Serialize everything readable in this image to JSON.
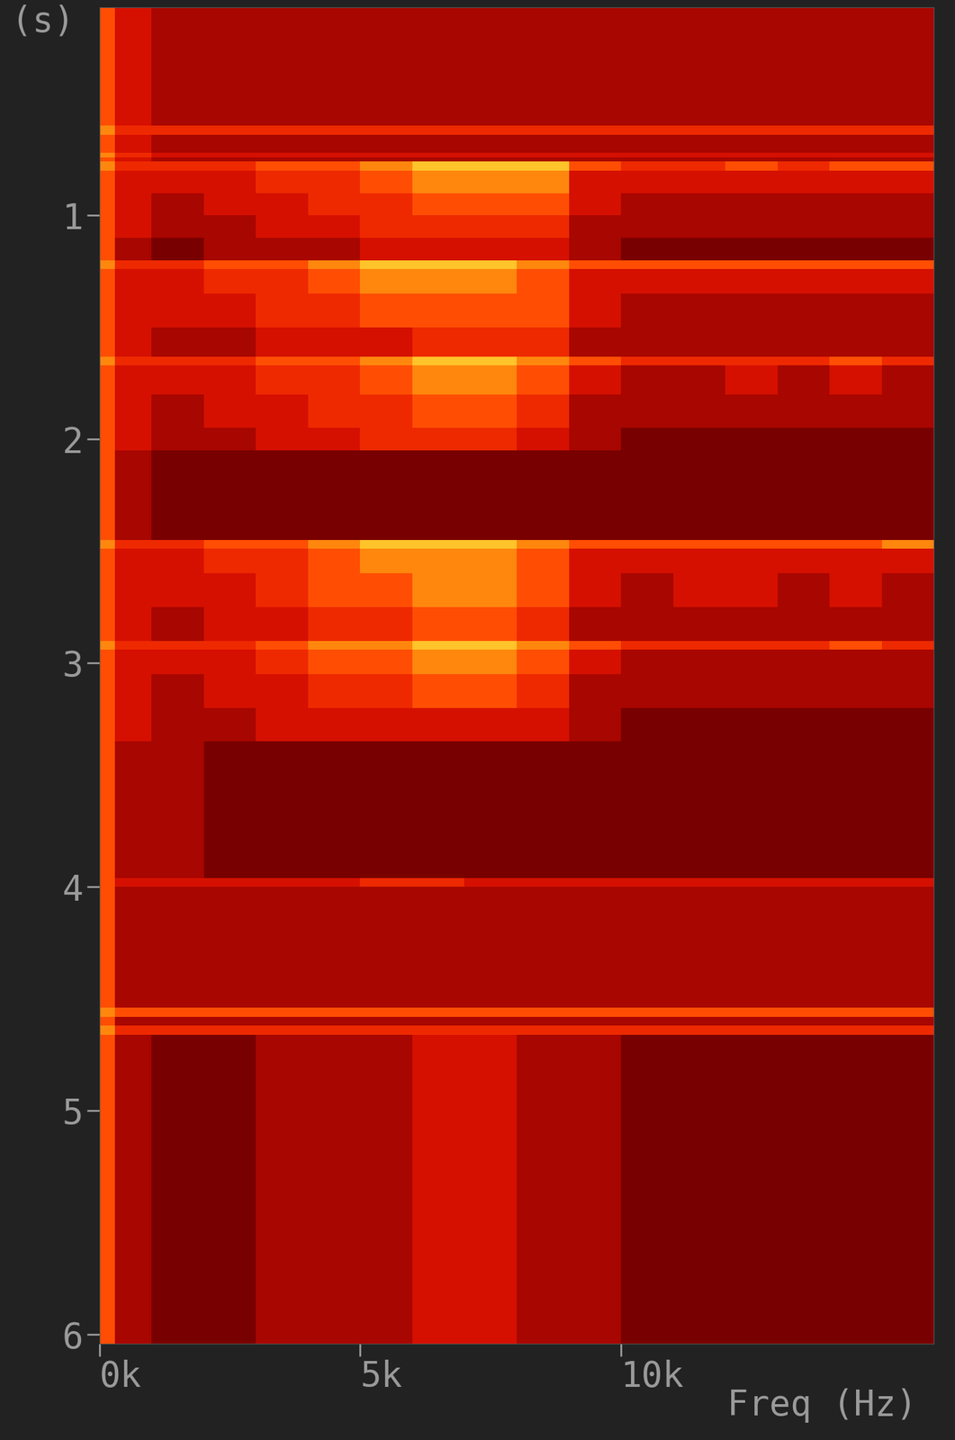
{
  "chart_data": {
    "type": "spectrogram",
    "x_label": "Freq (Hz)",
    "y_label": "(s)",
    "xlim": [
      0,
      16000
    ],
    "xticks": [
      {
        "value": 0,
        "label": "0k"
      },
      {
        "value": 5000,
        "label": "5k"
      },
      {
        "value": 10000,
        "label": "10k"
      }
    ],
    "ylim": [
      6.04,
      0.07
    ],
    "yticks": [
      1,
      2,
      3,
      4,
      5,
      6
    ],
    "freq_edges": [
      0,
      300,
      1000,
      2000,
      3000,
      4000,
      5000,
      6000,
      7000,
      8000,
      9000,
      10000,
      11000,
      12000,
      13000,
      14000,
      15000,
      16000
    ],
    "time_edges": [
      0.07,
      0.6,
      0.64,
      0.72,
      0.74,
      0.76,
      0.8,
      0.9,
      1.0,
      1.1,
      1.2,
      1.24,
      1.35,
      1.5,
      1.63,
      1.67,
      1.8,
      1.95,
      2.05,
      2.45,
      2.49,
      2.6,
      2.75,
      2.9,
      2.94,
      3.05,
      3.2,
      3.35,
      3.96,
      4.0,
      4.54,
      4.58,
      4.62,
      4.66,
      6.04
    ],
    "intensity_range": [
      0,
      10
    ],
    "cells": [
      [
        7,
        5,
        4,
        4,
        4,
        4,
        4,
        4,
        4,
        4,
        4,
        4,
        4,
        4,
        4,
        4,
        4
      ],
      [
        8,
        6,
        6,
        6,
        6,
        6,
        6,
        6,
        6,
        6,
        6,
        6,
        6,
        6,
        6,
        6,
        6
      ],
      [
        7,
        5,
        4,
        4,
        4,
        4,
        4,
        4,
        4,
        4,
        4,
        4,
        4,
        4,
        4,
        4,
        4
      ],
      [
        8,
        6,
        5,
        5,
        5,
        5,
        5,
        5,
        5,
        5,
        5,
        5,
        5,
        5,
        5,
        5,
        5
      ],
      [
        7,
        5,
        4,
        4,
        4,
        4,
        4,
        4,
        4,
        4,
        4,
        4,
        4,
        4,
        4,
        4,
        4
      ],
      [
        8,
        6,
        6,
        6,
        7,
        7,
        8,
        9,
        9,
        9,
        7,
        6,
        6,
        7,
        6,
        7,
        7
      ],
      [
        7,
        5,
        5,
        5,
        6,
        6,
        7,
        8,
        8,
        8,
        5,
        5,
        5,
        5,
        5,
        5,
        5
      ],
      [
        7,
        5,
        4,
        5,
        5,
        6,
        6,
        7,
        7,
        7,
        5,
        4,
        4,
        4,
        4,
        4,
        4
      ],
      [
        7,
        5,
        4,
        4,
        5,
        5,
        6,
        6,
        6,
        6,
        4,
        4,
        4,
        4,
        4,
        4,
        4
      ],
      [
        7,
        4,
        3,
        4,
        4,
        4,
        5,
        5,
        5,
        5,
        4,
        3,
        3,
        3,
        3,
        3,
        3
      ],
      [
        8,
        6,
        6,
        7,
        7,
        8,
        9,
        9,
        9,
        8,
        7,
        7,
        7,
        7,
        7,
        7,
        7
      ],
      [
        7,
        5,
        5,
        6,
        6,
        7,
        8,
        8,
        8,
        7,
        5,
        5,
        5,
        5,
        5,
        5,
        5
      ],
      [
        7,
        5,
        5,
        5,
        6,
        6,
        7,
        7,
        7,
        7,
        5,
        4,
        4,
        4,
        4,
        4,
        4
      ],
      [
        7,
        5,
        4,
        4,
        5,
        5,
        5,
        6,
        6,
        6,
        4,
        4,
        4,
        4,
        4,
        4,
        4
      ],
      [
        8,
        6,
        6,
        6,
        7,
        7,
        8,
        9,
        9,
        8,
        7,
        6,
        6,
        6,
        6,
        7,
        6
      ],
      [
        7,
        5,
        5,
        5,
        6,
        6,
        7,
        8,
        8,
        7,
        5,
        4,
        4,
        5,
        4,
        5,
        4
      ],
      [
        7,
        5,
        4,
        5,
        5,
        6,
        6,
        7,
        7,
        6,
        4,
        4,
        4,
        4,
        4,
        4,
        4
      ],
      [
        7,
        5,
        4,
        4,
        5,
        5,
        6,
        6,
        6,
        5,
        4,
        3,
        3,
        3,
        3,
        3,
        3
      ],
      [
        7,
        4,
        3,
        3,
        3,
        3,
        3,
        3,
        3,
        3,
        3,
        3,
        3,
        3,
        3,
        3,
        3
      ],
      [
        8,
        6,
        6,
        7,
        7,
        8,
        9,
        9,
        9,
        8,
        7,
        7,
        7,
        7,
        7,
        7,
        8
      ],
      [
        7,
        5,
        5,
        6,
        6,
        7,
        8,
        8,
        8,
        7,
        5,
        5,
        5,
        5,
        5,
        5,
        5
      ],
      [
        7,
        5,
        5,
        5,
        6,
        7,
        7,
        8,
        8,
        7,
        5,
        4,
        5,
        5,
        4,
        5,
        4
      ],
      [
        7,
        5,
        4,
        5,
        5,
        6,
        6,
        7,
        7,
        6,
        4,
        4,
        4,
        4,
        4,
        4,
        4
      ],
      [
        8,
        6,
        6,
        6,
        7,
        8,
        8,
        9,
        9,
        8,
        7,
        6,
        6,
        6,
        6,
        7,
        6
      ],
      [
        7,
        5,
        5,
        5,
        6,
        7,
        7,
        8,
        8,
        7,
        5,
        4,
        4,
        4,
        4,
        4,
        4
      ],
      [
        7,
        5,
        4,
        5,
        5,
        6,
        6,
        7,
        7,
        6,
        4,
        4,
        4,
        4,
        4,
        4,
        4
      ],
      [
        7,
        5,
        4,
        4,
        5,
        5,
        5,
        5,
        5,
        5,
        4,
        3,
        3,
        3,
        3,
        3,
        3
      ],
      [
        7,
        4,
        4,
        3,
        3,
        3,
        3,
        3,
        3,
        3,
        3,
        3,
        3,
        3,
        3,
        3,
        3
      ],
      [
        7,
        5,
        5,
        5,
        5,
        5,
        6,
        6,
        5,
        5,
        5,
        5,
        5,
        5,
        5,
        5,
        5
      ],
      [
        7,
        4,
        4,
        4,
        4,
        4,
        4,
        4,
        4,
        4,
        4,
        4,
        4,
        4,
        4,
        4,
        4
      ],
      [
        8,
        7,
        7,
        7,
        7,
        7,
        7,
        7,
        7,
        7,
        7,
        7,
        7,
        7,
        7,
        7,
        7
      ],
      [
        7,
        4,
        4,
        4,
        4,
        4,
        4,
        4,
        4,
        4,
        4,
        4,
        4,
        4,
        4,
        4,
        4
      ],
      [
        8,
        6,
        6,
        6,
        6,
        6,
        6,
        6,
        6,
        6,
        6,
        6,
        6,
        6,
        6,
        6,
        6
      ],
      [
        7,
        4,
        3,
        3,
        4,
        4,
        4,
        5,
        5,
        4,
        4,
        3,
        3,
        3,
        3,
        3,
        3
      ]
    ]
  }
}
